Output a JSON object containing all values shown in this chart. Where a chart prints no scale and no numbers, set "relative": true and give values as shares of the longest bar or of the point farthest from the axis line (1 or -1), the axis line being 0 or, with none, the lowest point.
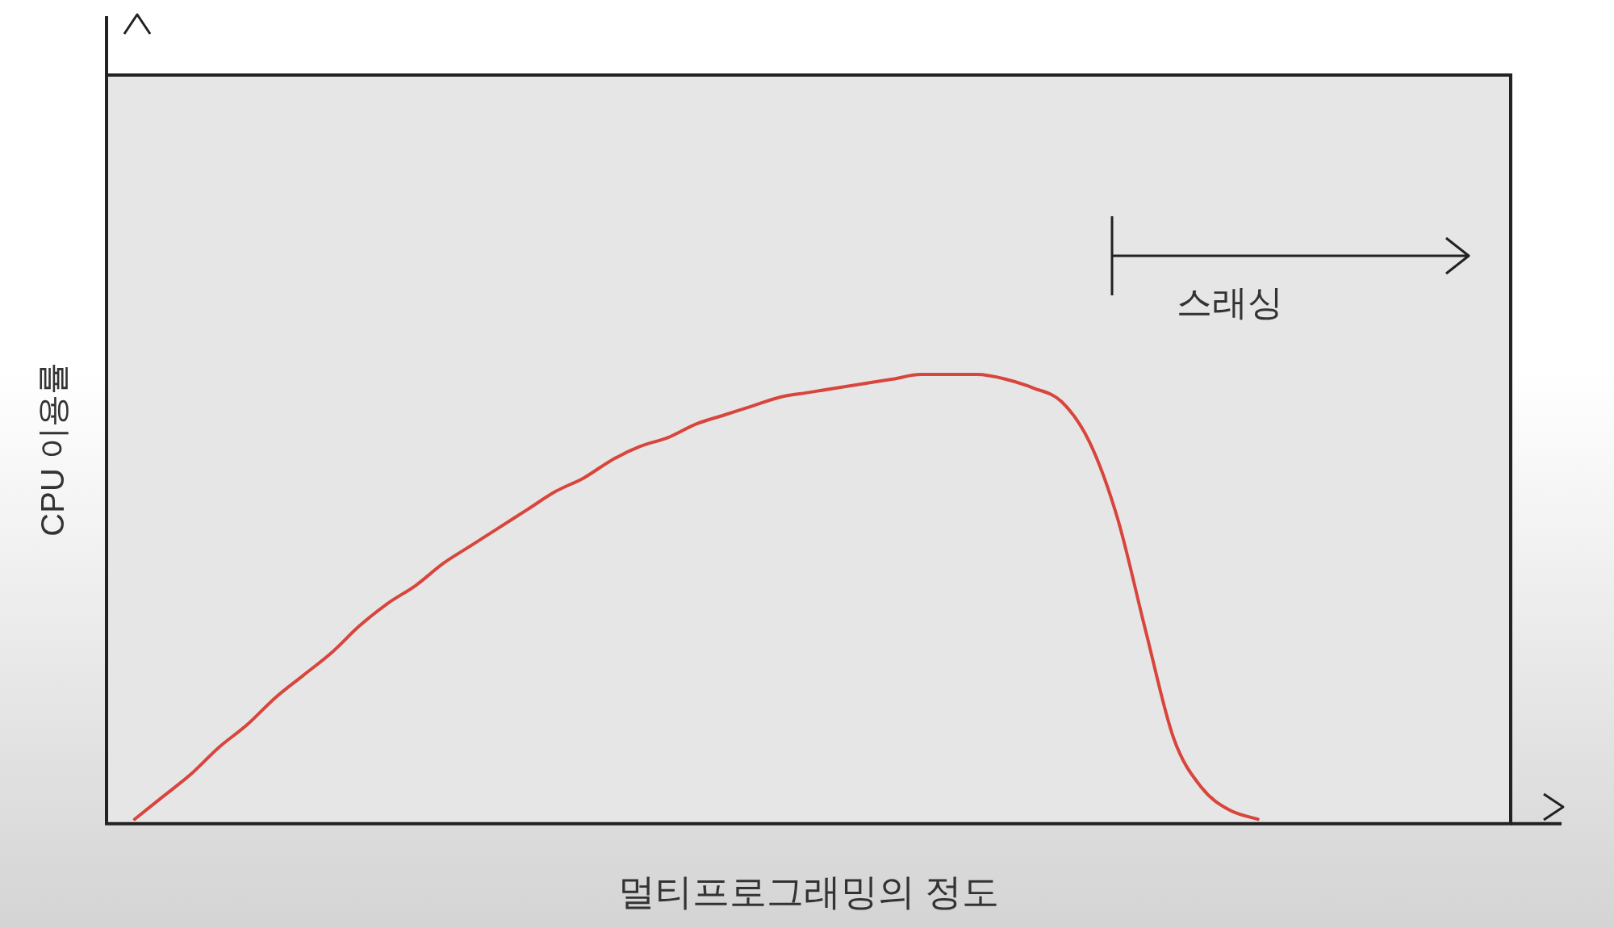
{
  "chart_data": {
    "type": "line",
    "relative": true,
    "xlabel": "멀티프로그래밍의 정도",
    "ylabel": "CPU 이용률",
    "annotations": [
      "스래싱"
    ],
    "grid": false,
    "legend": false,
    "marker": "none",
    "line_style": "solid",
    "categories": [
      null,
      null,
      null,
      null,
      null,
      null,
      null,
      null,
      null,
      null,
      null,
      null,
      null,
      null,
      null,
      null,
      null,
      null,
      null,
      null,
      null,
      null,
      null,
      null,
      null,
      null,
      null,
      null,
      null,
      null,
      null,
      null,
      null,
      null,
      null,
      null,
      null,
      null,
      null,
      null,
      null,
      null,
      null,
      null,
      null,
      null,
      null,
      null,
      null,
      null,
      null
    ],
    "series": [
      {
        "color": "#d8453c",
        "values": [
          null,
          0.01,
          0.06,
          0.11,
          0.17,
          0.22,
          0.28,
          0.33,
          0.38,
          0.44,
          0.49,
          0.53,
          0.58,
          0.62,
          0.66,
          0.7,
          0.74,
          0.77,
          0.81,
          0.84,
          0.86,
          0.89,
          0.91,
          0.93,
          0.95,
          0.96,
          0.97,
          0.98,
          0.99,
          1,
          1,
          1,
          0.99,
          0.97,
          0.94,
          0.85,
          0.68,
          0.43,
          0.19,
          0.08,
          0.03,
          0.01,
          null,
          null,
          null,
          null,
          null,
          null,
          null,
          null,
          null
        ]
      }
    ]
  }
}
